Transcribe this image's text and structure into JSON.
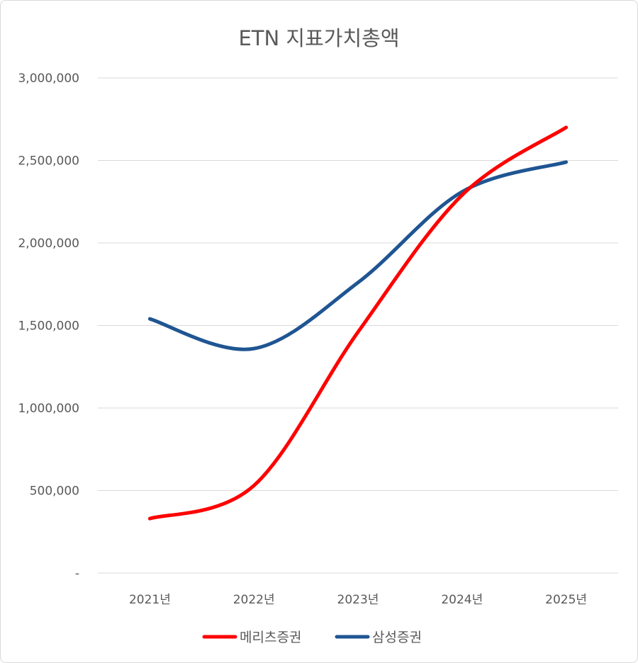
{
  "chart_data": {
    "type": "line",
    "title": "ETN 지표가치총액",
    "categories": [
      "2021년",
      "2022년",
      "2023년",
      "2024년",
      "2025년"
    ],
    "yticks": [
      "-",
      "500,000",
      "1,000,000",
      "1,500,000",
      "2,000,000",
      "2,500,000",
      "3,000,000"
    ],
    "ylim": [
      0,
      3000000
    ],
    "grid": true,
    "legend_position": "bottom",
    "series": [
      {
        "name": "메리츠증권",
        "color": "#ff0000",
        "values": [
          330000,
          530000,
          1460000,
          2290000,
          2700000
        ]
      },
      {
        "name": "삼성증권",
        "color": "#1f5592",
        "values": [
          1540000,
          1360000,
          1760000,
          2310000,
          2490000
        ]
      }
    ]
  }
}
